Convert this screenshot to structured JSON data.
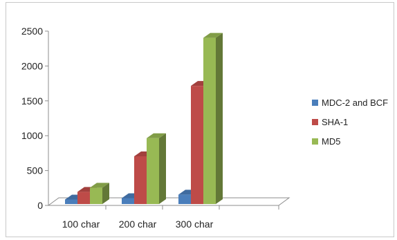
{
  "chart_data": {
    "type": "bar",
    "categories": [
      "100 char",
      "200 char",
      "300 char"
    ],
    "series": [
      {
        "name": "MDC-2 and BCF",
        "values": [
          50,
          70,
          120
        ],
        "color": "#4a7ebb"
      },
      {
        "name": "SHA-1",
        "values": [
          160,
          670,
          1680
        ],
        "color": "#be4b48"
      },
      {
        "name": "MD5",
        "values": [
          220,
          930,
          2370
        ],
        "color": "#98b954"
      }
    ],
    "ylim": [
      0,
      2500
    ],
    "yticks": [
      "0",
      "500",
      "1000",
      "1500",
      "2000",
      "2500"
    ],
    "grid": false,
    "legend_position": "right",
    "style": "3d-column"
  }
}
